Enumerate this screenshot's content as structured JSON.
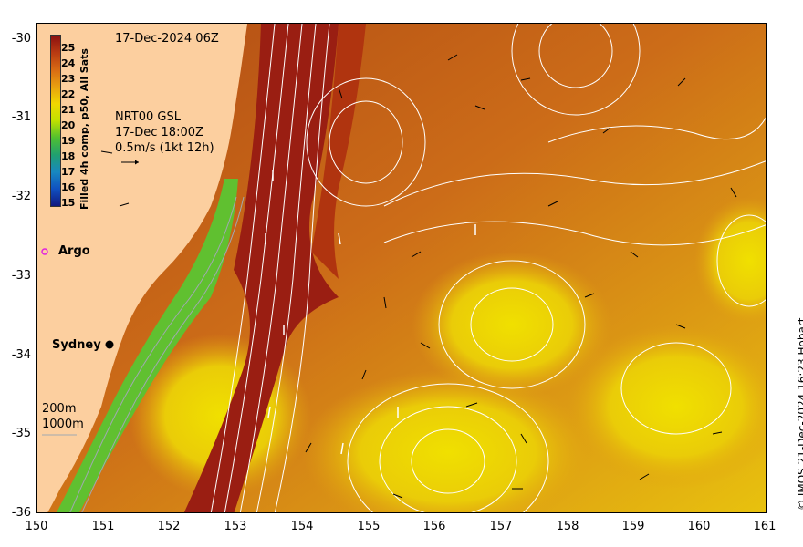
{
  "header": {
    "timestamp": "17-Dec-2024 06Z"
  },
  "current_info": {
    "product": "NRT00 GSL",
    "time": "17-Dec 18:00Z",
    "scale": "0.5m/s (1kt 12h)"
  },
  "colorbar": {
    "title": "Filled 4h comp, p50, All Sats",
    "labels": [
      "25",
      "24",
      "23",
      "22",
      "21",
      "20",
      "19",
      "18",
      "17",
      "16",
      "15"
    ],
    "colors": [
      "#8b1010",
      "#b83a12",
      "#d86a14",
      "#e8a010",
      "#f0d800",
      "#c0e000",
      "#50c030",
      "#20a070",
      "#1888c0",
      "#1050c0",
      "#101880"
    ]
  },
  "places": {
    "argo": "Argo",
    "sydney": "Sydney"
  },
  "legend": {
    "depth_200": "200m",
    "depth_1000": "1000m"
  },
  "axes": {
    "x_ticks": [
      "150",
      "151",
      "152",
      "153",
      "154",
      "155",
      "156",
      "157",
      "158",
      "159",
      "160",
      "161"
    ],
    "y_ticks": [
      "-30",
      "-31",
      "-32",
      "-33",
      "-34",
      "-35",
      "-36"
    ],
    "x_range": [
      150,
      161
    ],
    "y_range": [
      -36,
      -30
    ]
  },
  "credit": "© IMOS 21-Dec-2024 16:23 Hobart",
  "colors": {
    "land": "#fccf9f",
    "warm_core": "#9a1e12",
    "sea_mid": "#c8601a",
    "sea_cool": "#e8b410",
    "coastal_green": "#60c030",
    "contour": "#ffffff",
    "argo_marker": "#e020e0"
  }
}
